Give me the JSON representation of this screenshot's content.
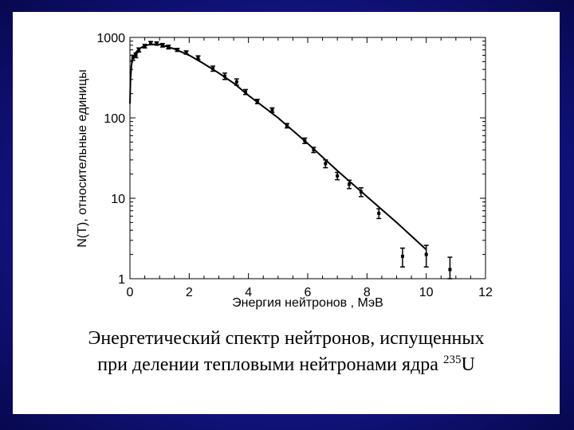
{
  "chart_data": {
    "type": "scatter",
    "ylabel": "N(T), относительные единицы",
    "xlabel": "Энергия нейтронов , МэВ",
    "xlim": [
      0,
      12
    ],
    "ylim": [
      1,
      1000
    ],
    "yscale": "log",
    "x_ticks": [
      "0",
      "2",
      "4",
      "6",
      "8",
      "10",
      "12"
    ],
    "y_ticks": [
      "1",
      "10",
      "100",
      "1000"
    ],
    "grid": false,
    "series": [
      {
        "style": "line",
        "x": [
          0.0,
          0.02,
          0.05,
          0.1,
          0.2,
          0.3,
          0.5,
          0.7,
          1.0,
          1.5,
          2.0,
          2.5,
          3.0,
          3.5,
          4.0,
          5.0,
          6.0,
          7.0,
          8.0,
          9.0,
          10.0
        ],
        "y": [
          150,
          300,
          450,
          560,
          650,
          720,
          790,
          820,
          820,
          720,
          600,
          470,
          360,
          270,
          190,
          100,
          48,
          22,
          10.5,
          5.0,
          2.3
        ]
      },
      {
        "style": "points",
        "x": [
          0.1,
          0.2,
          0.3,
          0.5,
          0.7,
          0.9,
          1.1,
          1.3,
          1.6,
          1.9,
          2.3,
          2.8,
          3.2,
          3.6,
          3.9,
          4.3,
          4.8,
          5.3,
          5.9,
          6.2,
          6.6,
          7.0,
          7.4,
          7.8,
          8.4,
          9.2,
          10.0,
          10.8
        ],
        "y": [
          560,
          600,
          700,
          780,
          850,
          840,
          800,
          760,
          700,
          650,
          560,
          410,
          330,
          280,
          210,
          160,
          125,
          80,
          52,
          40,
          27,
          19,
          15,
          12,
          6.5,
          1.9,
          2.0,
          1.3
        ],
        "yerr": [
          40,
          40,
          40,
          40,
          40,
          40,
          40,
          40,
          30,
          30,
          30,
          30,
          30,
          25,
          15,
          10,
          8,
          5,
          4,
          3,
          3,
          2,
          1.8,
          1.5,
          0.9,
          0.5,
          0.6,
          0.55
        ]
      }
    ]
  },
  "caption": {
    "line1": "Энергетический спектр нейтронов, испущенных",
    "line2": "при делении тепловыми нейтронами ядра ",
    "isotope_mass": "235",
    "isotope_symbol": "U"
  }
}
